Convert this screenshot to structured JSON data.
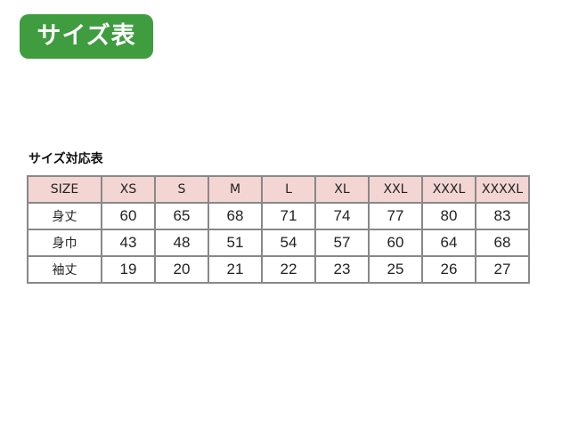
{
  "badge": {
    "label": "サイズ表",
    "color": "#3f9c3f"
  },
  "table_title": "サイズ対応表",
  "table": {
    "header_color": "#f3d6d3",
    "header": [
      "SIZE",
      "XS",
      "S",
      "M",
      "L",
      "XL",
      "XXL",
      "XXXL",
      "XXXXL"
    ],
    "rows": [
      [
        "身丈",
        "60",
        "65",
        "68",
        "71",
        "74",
        "77",
        "80",
        "83"
      ],
      [
        "身巾",
        "43",
        "48",
        "51",
        "54",
        "57",
        "60",
        "64",
        "68"
      ],
      [
        "袖丈",
        "19",
        "20",
        "21",
        "22",
        "23",
        "25",
        "26",
        "27"
      ]
    ]
  }
}
